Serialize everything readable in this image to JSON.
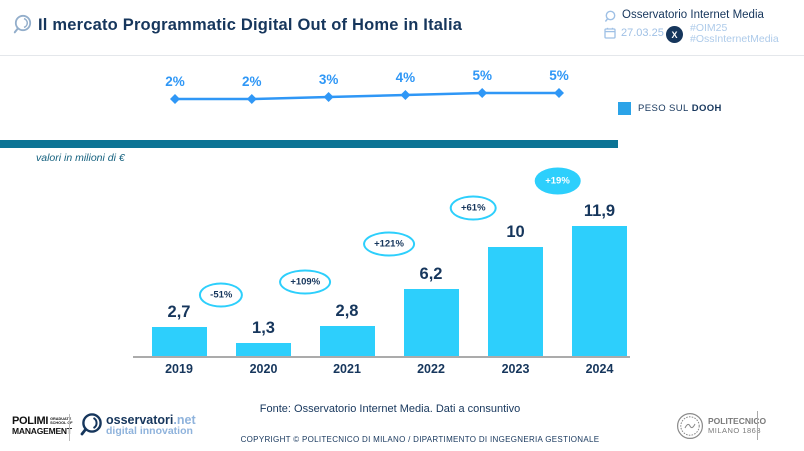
{
  "header": {
    "title": "Il mercato Programmatic Digital Out of Home in Italia",
    "org_name": "Osservatorio Internet Media",
    "date": "27.03.25",
    "hashtag_1": "#OIM25",
    "hashtag_2": "#OssInternetMedia"
  },
  "legend": {
    "prefix": "PESO SUL",
    "emphasis": "DOOH"
  },
  "unit_note": "valori in milioni di €",
  "chart_data": {
    "type": "bar",
    "title": "Il mercato Programmatic Digital Out of Home in Italia",
    "unit": "milioni di €",
    "categories": [
      "2019",
      "2020",
      "2021",
      "2022",
      "2023",
      "2024"
    ],
    "series": [
      {
        "name": "Mercato Programmatic DOOH (milioni di €)",
        "type": "bar",
        "values": [
          2.7,
          1.3,
          2.8,
          6.2,
          10,
          11.9
        ],
        "value_labels": [
          "2,7",
          "1,3",
          "2,8",
          "6,2",
          "10",
          "11,9"
        ]
      },
      {
        "name": "Peso sul DOOH (%)",
        "type": "line",
        "values": [
          2,
          2,
          3,
          4,
          5,
          5
        ],
        "value_labels": [
          "2%",
          "2%",
          "3%",
          "4%",
          "5%",
          "5%"
        ]
      }
    ],
    "yoy_growth_labels": [
      {
        "period": "2019-2020",
        "label": "-51%",
        "filled": false
      },
      {
        "period": "2020-2021",
        "label": "+109%",
        "filled": false
      },
      {
        "period": "2021-2022",
        "label": "+121%",
        "filled": false
      },
      {
        "period": "2022-2023",
        "label": "+61%",
        "filled": false
      },
      {
        "period": "2023-2024",
        "label": "+19%",
        "filled": true
      }
    ],
    "legend": [
      "PESO SUL DOOH"
    ],
    "legend_position": "right",
    "grid": false,
    "ylim": [
      0,
      13
    ]
  },
  "footer": {
    "source": "Fonte: Osservatorio Internet Media. Dati a consuntivo",
    "copyright": "COPYRIGHT © POLITECNICO DI MILANO / DIPARTIMENTO DI INGEGNERIA GESTIONALE"
  },
  "logos": {
    "polimi_main": "POLIMI",
    "polimi_small_1": "GRADUATE",
    "polimi_small_2": "SCHOOL OF",
    "polimi_sub": "MANAGEMENT",
    "oss_name": "osservatori",
    "oss_net": ".net",
    "oss_tagline": "digital innovation",
    "poli_name": "POLITECNICO",
    "poli_sub": "MILANO 1863"
  },
  "colors": {
    "navy": "#16365C",
    "bar_cyan": "#2DCFFC",
    "line_blue": "#2F97F6",
    "divider_teal": "#0C7495",
    "light_blue": "#9FC0E5"
  }
}
